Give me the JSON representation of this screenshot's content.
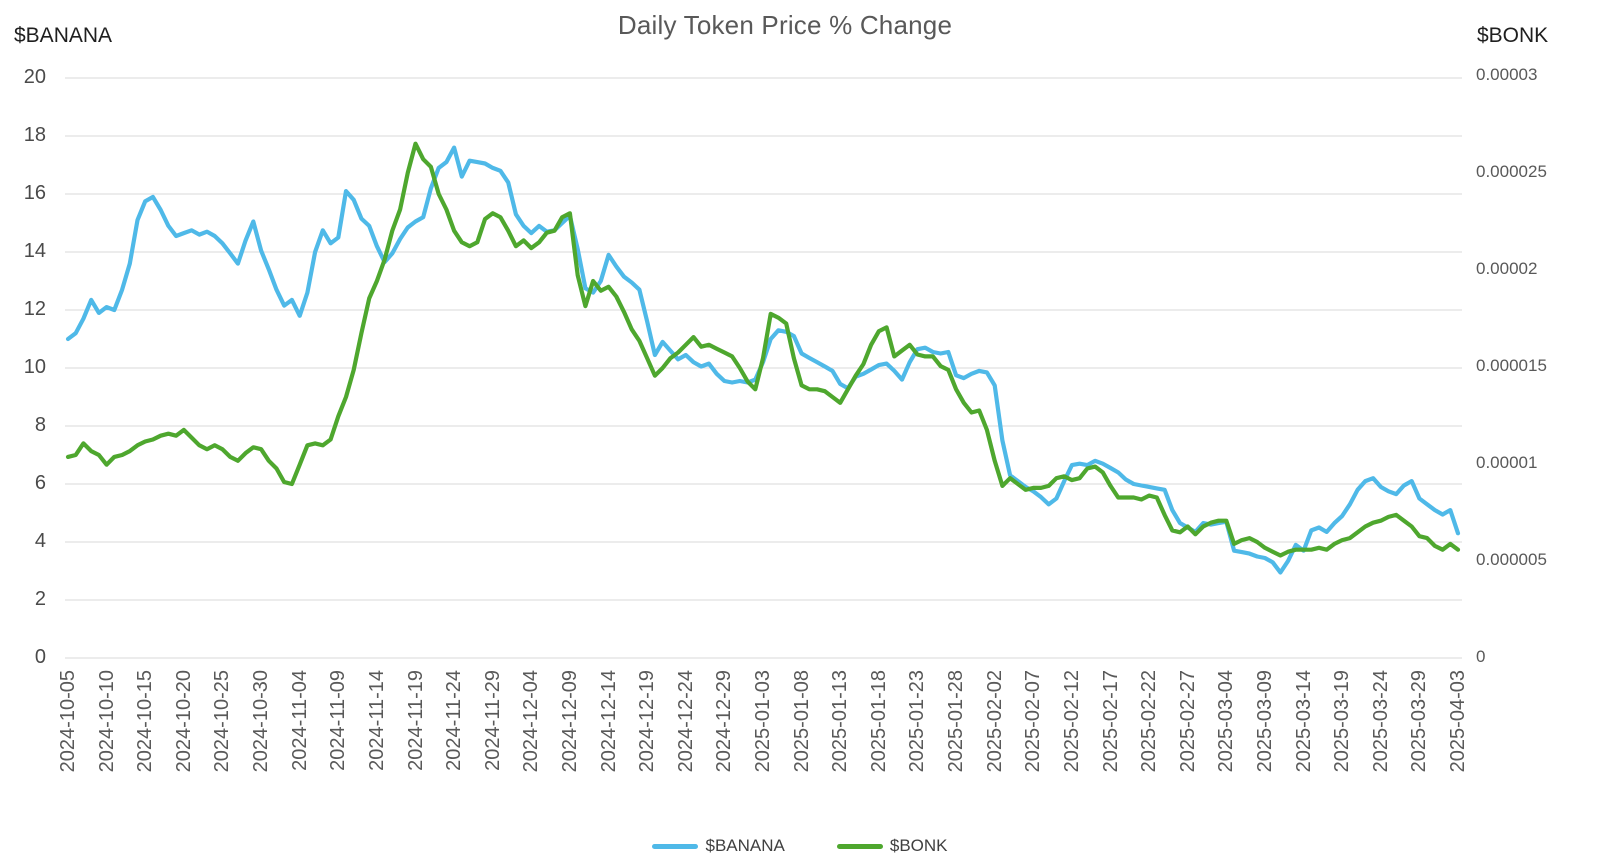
{
  "title": "Daily Token Price % Change",
  "left_axis_label": "$BANANA",
  "right_axis_label": "$BONK",
  "legend": [
    {
      "label": "$BANANA",
      "color": "#4FB9E8"
    },
    {
      "label": "$BONK",
      "color": "#4EA72E"
    }
  ],
  "colors": {
    "banana_line": "#4FB9E8",
    "bonk_line": "#4EA72E",
    "gridline": "#D9D9D9",
    "title_text": "#595959",
    "tick_text": "#595959"
  },
  "chart_data": {
    "type": "line",
    "title": "Daily Token Price % Change",
    "grid": "horizontal only",
    "legend_position": "bottom center",
    "x_start": "2024-10-05",
    "x_end": "2025-04-03",
    "x_step_days": 1,
    "x_tick_every_days": 5,
    "x_tick_labels": [
      "2024-10-05",
      "2024-10-10",
      "2024-10-15",
      "2024-10-20",
      "2024-10-25",
      "2024-10-30",
      "2024-11-04",
      "2024-11-09",
      "2024-11-14",
      "2024-11-19",
      "2024-11-24",
      "2024-11-29",
      "2024-12-04",
      "2024-12-09",
      "2024-12-14",
      "2024-12-19",
      "2024-12-24",
      "2024-12-29",
      "2025-01-03",
      "2025-01-08",
      "2025-01-13",
      "2025-01-18",
      "2025-01-23",
      "2025-01-28",
      "2025-02-02",
      "2025-02-07",
      "2025-02-12",
      "2025-02-17",
      "2025-02-22",
      "2025-02-27",
      "2025-03-04",
      "2025-03-09",
      "2025-03-14",
      "2025-03-19",
      "2025-03-24",
      "2025-03-29",
      "2025-04-03"
    ],
    "left_ylim": [
      0,
      20
    ],
    "left_tick_labels": [
      "20",
      "18",
      "16",
      "14",
      "12",
      "10",
      "8",
      "6",
      "4",
      "2",
      "0"
    ],
    "right_ylim": [
      0,
      3e-05
    ],
    "right_tick_labels": [
      "0.00003",
      "0.000025",
      "0.00002",
      "0.000015",
      "0.00001",
      "0.000005",
      "0"
    ],
    "series": [
      {
        "name": "$BANANA",
        "axis": "left",
        "color": "#4FB9E8",
        "values": [
          11.0,
          11.2,
          11.7,
          12.35,
          11.9,
          12.1,
          12.0,
          12.7,
          13.6,
          15.1,
          15.75,
          15.9,
          15.45,
          14.9,
          14.55,
          14.65,
          14.75,
          14.6,
          14.7,
          14.55,
          14.3,
          13.95,
          13.6,
          14.4,
          15.05,
          14.05,
          13.4,
          12.7,
          12.15,
          12.35,
          11.8,
          12.6,
          14.0,
          14.75,
          14.3,
          14.5,
          16.1,
          15.8,
          15.15,
          14.9,
          14.2,
          13.65,
          13.95,
          14.45,
          14.85,
          15.05,
          15.2,
          16.2,
          16.9,
          17.1,
          17.6,
          16.6,
          17.15,
          17.1,
          17.05,
          16.9,
          16.8,
          16.4,
          15.3,
          14.9,
          14.65,
          14.9,
          14.7,
          14.75,
          15.0,
          15.25,
          14.1,
          12.75,
          12.6,
          13.0,
          13.9,
          13.5,
          13.15,
          12.95,
          12.7,
          11.6,
          10.45,
          10.9,
          10.6,
          10.3,
          10.45,
          10.2,
          10.05,
          10.15,
          9.8,
          9.55,
          9.5,
          9.55,
          9.5,
          9.6,
          10.2,
          11.0,
          11.3,
          11.25,
          11.1,
          10.5,
          10.35,
          10.2,
          10.05,
          9.9,
          9.45,
          9.3,
          9.7,
          9.8,
          9.95,
          10.1,
          10.15,
          9.9,
          9.6,
          10.2,
          10.65,
          10.7,
          10.55,
          10.5,
          10.55,
          9.75,
          9.65,
          9.8,
          9.9,
          9.85,
          9.4,
          7.5,
          6.3,
          6.1,
          5.9,
          5.75,
          5.55,
          5.3,
          5.5,
          6.1,
          6.65,
          6.7,
          6.65,
          6.8,
          6.7,
          6.55,
          6.4,
          6.15,
          6.0,
          5.95,
          5.9,
          5.85,
          5.8,
          5.1,
          4.65,
          4.5,
          4.35,
          4.65,
          4.6,
          4.65,
          4.7,
          3.7,
          3.65,
          3.6,
          3.5,
          3.45,
          3.3,
          2.95,
          3.35,
          3.9,
          3.7,
          4.4,
          4.5,
          4.35,
          4.65,
          4.9,
          5.3,
          5.8,
          6.1,
          6.2,
          5.9,
          5.75,
          5.65,
          5.95,
          6.1,
          5.5,
          5.3,
          5.1,
          4.95,
          5.1,
          4.3
        ]
      },
      {
        "name": "$BONK",
        "axis": "right",
        "color": "#4EA72E",
        "unit": "micro (values are ×0.000001, right axis 0–0.00003)",
        "values": [
          10.4,
          10.5,
          11.1,
          10.7,
          10.5,
          10.0,
          10.4,
          10.5,
          10.7,
          11.0,
          11.2,
          11.3,
          11.5,
          11.6,
          11.5,
          11.8,
          11.4,
          11.0,
          10.8,
          11.0,
          10.8,
          10.4,
          10.2,
          10.6,
          10.9,
          10.8,
          10.2,
          9.8,
          9.1,
          9.0,
          10.0,
          11.0,
          11.1,
          11.0,
          11.3,
          12.5,
          13.5,
          14.9,
          16.8,
          18.6,
          19.5,
          20.6,
          22.1,
          23.2,
          25.1,
          26.6,
          25.8,
          25.4,
          24.0,
          23.2,
          22.1,
          21.5,
          21.3,
          21.5,
          22.7,
          23.0,
          22.8,
          22.1,
          21.3,
          21.6,
          21.2,
          21.5,
          22.0,
          22.1,
          22.8,
          23.0,
          19.8,
          18.2,
          19.5,
          19.0,
          19.2,
          18.7,
          17.9,
          17.0,
          16.4,
          15.5,
          14.6,
          15.0,
          15.5,
          15.8,
          16.2,
          16.6,
          16.1,
          16.2,
          16.0,
          15.8,
          15.6,
          15.0,
          14.3,
          13.9,
          15.5,
          17.8,
          17.6,
          17.3,
          15.5,
          14.1,
          13.9,
          13.9,
          13.8,
          13.5,
          13.2,
          13.9,
          14.6,
          15.2,
          16.2,
          16.9,
          17.1,
          15.6,
          15.9,
          16.2,
          15.7,
          15.6,
          15.6,
          15.1,
          14.9,
          13.9,
          13.2,
          12.7,
          12.8,
          11.8,
          10.2,
          8.9,
          9.3,
          9.0,
          8.7,
          8.8,
          8.8,
          8.9,
          9.3,
          9.4,
          9.2,
          9.3,
          9.8,
          9.9,
          9.6,
          8.9,
          8.3,
          8.3,
          8.3,
          8.2,
          8.4,
          8.3,
          7.4,
          6.6,
          6.5,
          6.8,
          6.4,
          6.8,
          7.0,
          7.1,
          7.1,
          5.9,
          6.1,
          6.2,
          6.0,
          5.7,
          5.5,
          5.3,
          5.5,
          5.6,
          5.6,
          5.6,
          5.7,
          5.6,
          5.9,
          6.1,
          6.2,
          6.5,
          6.8,
          7.0,
          7.1,
          7.3,
          7.4,
          7.1,
          6.8,
          6.3,
          6.2,
          5.8,
          5.6,
          5.9,
          5.6
        ]
      }
    ]
  }
}
